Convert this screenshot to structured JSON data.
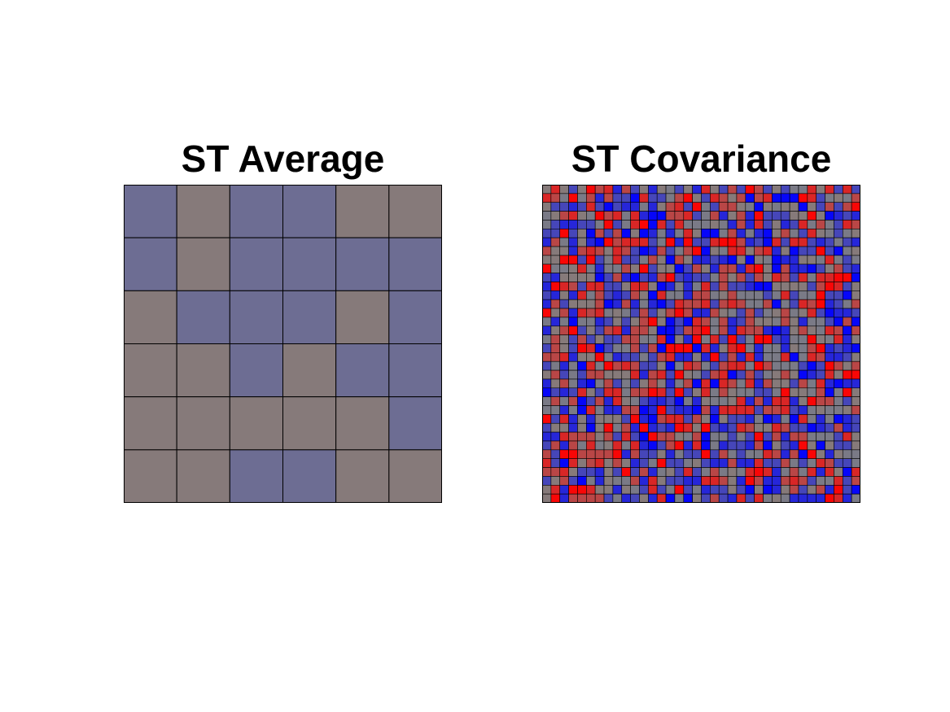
{
  "chart_data": [
    {
      "type": "heatmap",
      "title": "ST Average",
      "rows": 6,
      "cols": 6,
      "colormap": {
        "low": "#0000ff",
        "mid": "#808080",
        "high": "#ff0000"
      },
      "values": [
        [
          -0.15,
          0.05,
          -0.15,
          -0.15,
          0.05,
          0.05
        ],
        [
          -0.15,
          0.05,
          -0.15,
          -0.15,
          -0.15,
          -0.15
        ],
        [
          0.05,
          -0.15,
          -0.15,
          -0.15,
          0.05,
          -0.15
        ],
        [
          0.05,
          0.05,
          -0.15,
          0.05,
          -0.15,
          -0.15
        ],
        [
          0.05,
          0.05,
          0.05,
          0.05,
          0.05,
          -0.15
        ],
        [
          0.05,
          0.05,
          -0.15,
          -0.15,
          0.05,
          0.05
        ]
      ]
    },
    {
      "type": "heatmap",
      "title": "ST Covariance",
      "rows": 36,
      "cols": 36,
      "colormap": {
        "low": "#0000ff",
        "mid": "#808080",
        "high": "#ff0000"
      },
      "seed": 7,
      "value_range": [
        -1,
        1
      ]
    }
  ]
}
